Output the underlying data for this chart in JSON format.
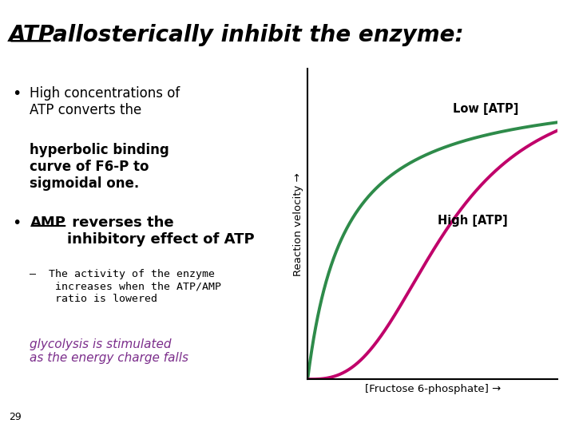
{
  "title_atp": "ATP ",
  "title_rest": "allosterically inhibit the enzyme:",
  "bullet1_line1": "High concentrations of",
  "bullet1_line2": "ATP converts the",
  "bullet1_bold": "hyperbolic binding\ncurve of F6-P to\nsigmoidal one.",
  "bullet2_underline": "AMP",
  "bullet2_rest": " reverses the\ninhibitory effect of ATP",
  "sub_bullet": "The activity of the enzyme\nincreases when the ATP/AMP\nratio is lowered",
  "italic_text": "glycolysis is stimulated\nas the energy charge falls",
  "xlabel": "[Fructose 6-phosphate] →",
  "ylabel": "Reaction velocity →",
  "label_low": "Low [ATP]",
  "label_high": "High [ATP]",
  "color_low": "#2e8b4a",
  "color_high": "#c0006a",
  "color_italic": "#7b2d8b",
  "bg_color": "#ffffff",
  "page_number": "29",
  "n_hill": 2.8,
  "km_low": 0.15,
  "km_high": 0.55,
  "vmax": 1.0
}
